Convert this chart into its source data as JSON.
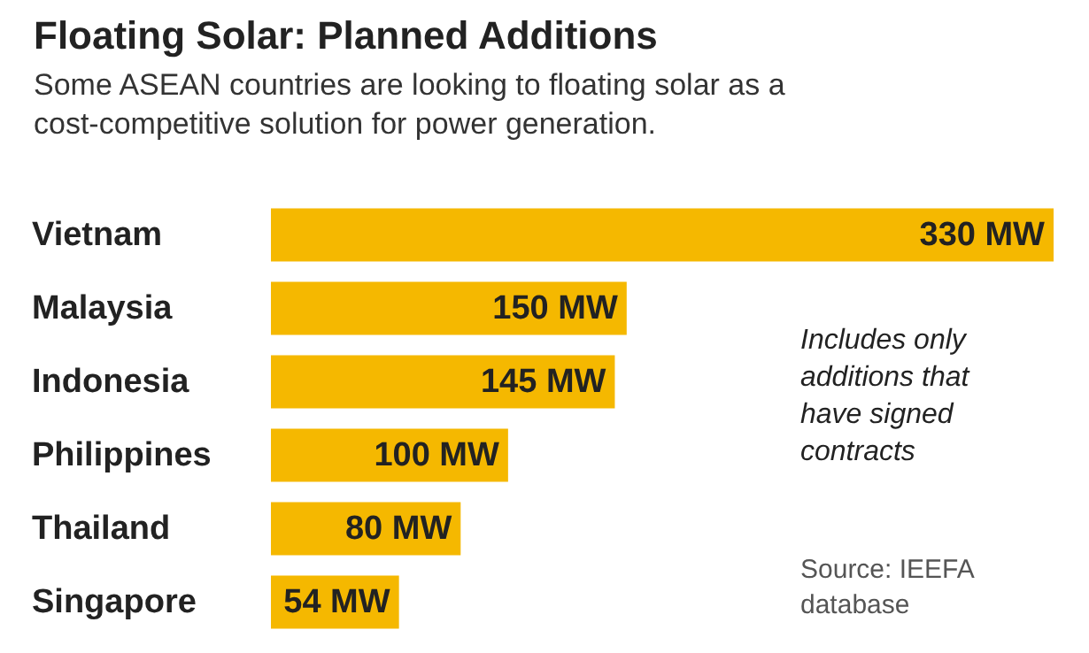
{
  "chart_data": {
    "type": "bar",
    "orientation": "horizontal",
    "title": "Floating Solar: Planned Additions",
    "subtitle": "Some ASEAN countries are looking to floating solar as a cost-competitive solution for power generation.",
    "categories": [
      "Vietnam",
      "Malaysia",
      "Indonesia",
      "Philippines",
      "Thailand",
      "Singapore"
    ],
    "values": [
      330,
      150,
      145,
      100,
      80,
      54
    ],
    "value_labels": [
      "330 MW",
      "150 MW",
      "145 MW",
      "100 MW",
      "80 MW",
      "54 MW"
    ],
    "color": "#f5b800",
    "annotations": [
      "Includes only additions that have signed contracts",
      "Source: IEEFA database"
    ]
  }
}
